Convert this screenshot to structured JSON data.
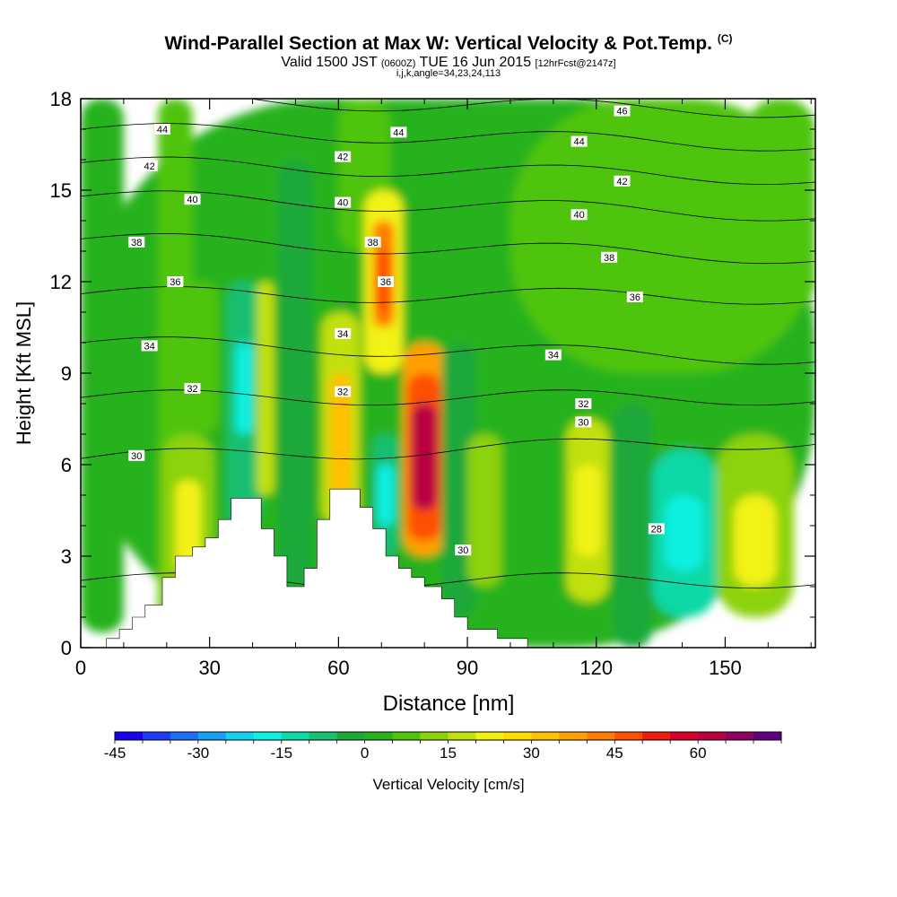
{
  "title": {
    "main": "Wind-Parallel Section at Max W: Vertical Velocity & Pot.Temp.",
    "copyright": "(C)",
    "valid_prefix": "Valid 1500 JST",
    "valid_utc": "(0600Z)",
    "valid_date": "TUE 16 Jun 2015",
    "forecast": "[12hrFcst@2147z]",
    "params": "i,j,k,angle=34,23,24,113"
  },
  "chart_data": {
    "type": "heatmap",
    "xlabel": "Distance [nm]",
    "ylabel": "Height [Kft MSL]",
    "xlim": [
      0,
      171
    ],
    "ylim": [
      0,
      18
    ],
    "xticks": [
      "0",
      "30",
      "60",
      "90",
      "120",
      "150"
    ],
    "yticks": [
      "0",
      "3",
      "6",
      "9",
      "12",
      "15",
      "18"
    ],
    "colorbar": {
      "label": "Vertical Velocity [cm/s]",
      "tick_labels": [
        "-45",
        "-30",
        "-15",
        "0",
        "15",
        "30",
        "45",
        "60"
      ],
      "range": [
        -45,
        70
      ],
      "step": 5,
      "colors": [
        "#1a00f0",
        "#1e3cf5",
        "#1e6ef8",
        "#16a0f4",
        "#14d0ef",
        "#10f0e0",
        "#10d8a6",
        "#18c070",
        "#1ea83a",
        "#28b21e",
        "#50c40c",
        "#8cd20a",
        "#c2e010",
        "#f2f212",
        "#ffdc00",
        "#ffc000",
        "#ffa000",
        "#ff7c00",
        "#ff5000",
        "#f01c0c",
        "#d40028",
        "#b80040",
        "#8c0060",
        "#600080"
      ]
    },
    "velocity_cells": [
      {
        "x": [
          0,
          171
        ],
        "y": [
          0,
          18
        ],
        "w": 2
      },
      {
        "x": [
          0,
          10
        ],
        "y": [
          0.5,
          18
        ],
        "w": 0
      },
      {
        "x": [
          18,
          26
        ],
        "y": [
          0,
          18
        ],
        "w": 8
      },
      {
        "x": [
          60,
          72
        ],
        "y": [
          13,
          18
        ],
        "w": 8
      },
      {
        "x": [
          100,
          171
        ],
        "y": [
          9,
          18
        ],
        "w": 7
      },
      {
        "x": [
          155,
          171
        ],
        "y": [
          11,
          18
        ],
        "w": 9
      },
      {
        "x": [
          24,
          32
        ],
        "y": [
          7,
          12
        ],
        "w": 9
      },
      {
        "x": [
          19,
          31
        ],
        "y": [
          1,
          7
        ],
        "w": 13
      },
      {
        "x": [
          22,
          28
        ],
        "y": [
          2.5,
          5.5
        ],
        "w": 22
      },
      {
        "x": [
          34,
          42
        ],
        "y": [
          4,
          12
        ],
        "w": -6
      },
      {
        "x": [
          36,
          40
        ],
        "y": [
          7,
          10
        ],
        "w": -17
      },
      {
        "x": [
          41,
          45
        ],
        "y": [
          5,
          12
        ],
        "w": 16
      },
      {
        "x": [
          46,
          54
        ],
        "y": [
          2,
          16
        ],
        "w": -5
      },
      {
        "x": [
          56,
          65
        ],
        "y": [
          4,
          11
        ],
        "w": 18
      },
      {
        "x": [
          58,
          63
        ],
        "y": [
          5,
          9
        ],
        "w": 30
      },
      {
        "x": [
          66,
          75
        ],
        "y": [
          9,
          15
        ],
        "w": 22
      },
      {
        "x": [
          68,
          73
        ],
        "y": [
          10.5,
          14
        ],
        "w": 40
      },
      {
        "x": [
          69,
          72
        ],
        "y": [
          11,
          13
        ],
        "w": 48
      },
      {
        "x": [
          68,
          74
        ],
        "y": [
          3,
          7
        ],
        "w": -10
      },
      {
        "x": [
          69,
          73
        ],
        "y": [
          4,
          6
        ],
        "w": -20
      },
      {
        "x": [
          75,
          85
        ],
        "y": [
          3,
          10
        ],
        "w": 35
      },
      {
        "x": [
          76,
          84
        ],
        "y": [
          3.5,
          9
        ],
        "w": 48
      },
      {
        "x": [
          77,
          83
        ],
        "y": [
          4.5,
          8
        ],
        "w": 62
      },
      {
        "x": [
          84,
          92
        ],
        "y": [
          1,
          10
        ],
        "w": -4
      },
      {
        "x": [
          90,
          98
        ],
        "y": [
          2,
          7
        ],
        "w": 12
      },
      {
        "x": [
          113,
          123
        ],
        "y": [
          1.5,
          7.5
        ],
        "w": 15
      },
      {
        "x": [
          115,
          121
        ],
        "y": [
          3,
          6
        ],
        "w": 24
      },
      {
        "x": [
          124,
          133
        ],
        "y": [
          0,
          8
        ],
        "w": -4
      },
      {
        "x": [
          133,
          148
        ],
        "y": [
          1,
          6.5
        ],
        "w": -12
      },
      {
        "x": [
          136,
          145
        ],
        "y": [
          2.5,
          5
        ],
        "w": -16
      },
      {
        "x": [
          148,
          166
        ],
        "y": [
          1,
          7
        ],
        "w": 12
      },
      {
        "x": [
          152,
          162
        ],
        "y": [
          2,
          5
        ],
        "w": 22
      }
    ],
    "terrain_kft": [
      [
        0,
        0
      ],
      [
        6,
        0
      ],
      [
        6,
        0.3
      ],
      [
        9,
        0.3
      ],
      [
        9,
        0.6
      ],
      [
        12,
        0.6
      ],
      [
        12,
        1
      ],
      [
        15,
        1
      ],
      [
        15,
        1.4
      ],
      [
        19,
        1.4
      ],
      [
        19,
        2.3
      ],
      [
        22,
        2.3
      ],
      [
        22,
        3
      ],
      [
        26,
        3
      ],
      [
        26,
        3.3
      ],
      [
        29,
        3.3
      ],
      [
        29,
        3.6
      ],
      [
        32,
        3.6
      ],
      [
        32,
        4.2
      ],
      [
        35,
        4.2
      ],
      [
        35,
        4.9
      ],
      [
        42,
        4.9
      ],
      [
        42,
        3.9
      ],
      [
        45,
        3.9
      ],
      [
        45,
        3
      ],
      [
        48,
        3
      ],
      [
        48,
        2
      ],
      [
        52,
        2
      ],
      [
        52,
        2.6
      ],
      [
        55,
        2.6
      ],
      [
        55,
        4.2
      ],
      [
        58,
        4.2
      ],
      [
        58,
        5.2
      ],
      [
        65,
        5.2
      ],
      [
        65,
        4.6
      ],
      [
        68,
        4.6
      ],
      [
        68,
        3.9
      ],
      [
        71,
        3.9
      ],
      [
        71,
        3
      ],
      [
        74,
        3
      ],
      [
        74,
        2.6
      ],
      [
        77,
        2.6
      ],
      [
        77,
        2.3
      ],
      [
        80,
        2.3
      ],
      [
        80,
        2
      ],
      [
        84,
        2
      ],
      [
        84,
        1.6
      ],
      [
        87,
        1.6
      ],
      [
        87,
        1
      ],
      [
        90,
        1
      ],
      [
        90,
        0.6
      ],
      [
        97,
        0.6
      ],
      [
        97,
        0.3
      ],
      [
        104,
        0.3
      ],
      [
        104,
        0
      ],
      [
        171,
        0
      ]
    ],
    "theta_levels": [
      {
        "label": "28",
        "y_left": 2.2,
        "y_right": 2.2
      },
      {
        "label": "30",
        "y_left": 6.2,
        "y_right": 6.8
      },
      {
        "label": "32",
        "y_left": 8.2,
        "y_right": 8.2
      },
      {
        "label": "34",
        "y_left": 10.0,
        "y_right": 9.5
      },
      {
        "label": "36",
        "y_left": 11.6,
        "y_right": 11.5
      },
      {
        "label": "38",
        "y_left": 13.4,
        "y_right": 12.8
      },
      {
        "label": "40",
        "y_left": 14.8,
        "y_right": 14.2
      },
      {
        "label": "42",
        "y_left": 15.9,
        "y_right": 15.4
      },
      {
        "label": "44",
        "y_left": 17.0,
        "y_right": 16.5
      },
      {
        "label": "46",
        "y_left": 18.0,
        "y_right": 17.6
      }
    ],
    "contour_labels": [
      {
        "text": "44",
        "x": 19,
        "y": 17.0
      },
      {
        "text": "42",
        "x": 16,
        "y": 15.8
      },
      {
        "text": "40",
        "x": 26,
        "y": 14.7
      },
      {
        "text": "38",
        "x": 13,
        "y": 13.3
      },
      {
        "text": "36",
        "x": 22,
        "y": 12.0
      },
      {
        "text": "34",
        "x": 16,
        "y": 9.9
      },
      {
        "text": "32",
        "x": 26,
        "y": 8.5
      },
      {
        "text": "30",
        "x": 13,
        "y": 6.3
      },
      {
        "text": "42",
        "x": 61,
        "y": 16.1
      },
      {
        "text": "40",
        "x": 61,
        "y": 14.6
      },
      {
        "text": "38",
        "x": 68,
        "y": 13.3
      },
      {
        "text": "36",
        "x": 71,
        "y": 12.0
      },
      {
        "text": "34",
        "x": 61,
        "y": 10.3
      },
      {
        "text": "32",
        "x": 61,
        "y": 8.4
      },
      {
        "text": "44",
        "x": 74,
        "y": 16.9
      },
      {
        "text": "30",
        "x": 89,
        "y": 3.2
      },
      {
        "text": "46",
        "x": 126,
        "y": 17.6
      },
      {
        "text": "44",
        "x": 116,
        "y": 16.6
      },
      {
        "text": "42",
        "x": 126,
        "y": 15.3
      },
      {
        "text": "40",
        "x": 116,
        "y": 14.2
      },
      {
        "text": "38",
        "x": 123,
        "y": 12.8
      },
      {
        "text": "36",
        "x": 129,
        "y": 11.5
      },
      {
        "text": "34",
        "x": 110,
        "y": 9.6
      },
      {
        "text": "32",
        "x": 117,
        "y": 8.0
      },
      {
        "text": "30",
        "x": 117,
        "y": 7.4
      },
      {
        "text": "28",
        "x": 134,
        "y": 3.9
      }
    ]
  }
}
